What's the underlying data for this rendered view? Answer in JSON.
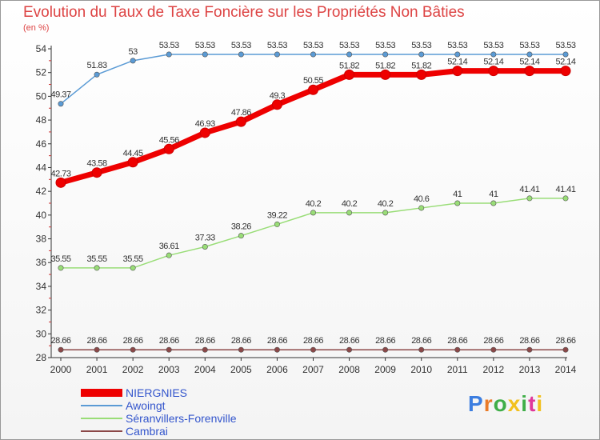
{
  "header": {
    "title": "Evolution du Taux de Taxe Foncière sur les Propriétés Non Bâties",
    "unit": "(en %)"
  },
  "logo": {
    "text": "Proxiti",
    "colors": [
      "#3c7ee0",
      "#ea7b28",
      "#3fae48",
      "#f2c01e",
      "#3fae48",
      "#e0389a",
      "#f2c01e"
    ]
  },
  "chart_data": {
    "type": "line",
    "title": "Evolution du Taux de Taxe Foncière sur les Propriétés Non Bâties",
    "ylabel": "(en %)",
    "x": [
      "2000",
      "2001",
      "2002",
      "2003",
      "2004",
      "2005",
      "2006",
      "2007",
      "2008",
      "2009",
      "2010",
      "2011",
      "2012",
      "2013",
      "2014"
    ],
    "ylim": [
      28,
      54
    ],
    "yticks": [
      28,
      30,
      32,
      34,
      36,
      38,
      40,
      42,
      44,
      46,
      48,
      50,
      52,
      54
    ],
    "grid": false,
    "legend_position": "bottom-left",
    "series": [
      {
        "name": "NIERGNIES",
        "color": "#ee0000",
        "emphasis": true,
        "values": [
          42.73,
          43.58,
          44.45,
          45.56,
          46.93,
          47.86,
          49.3,
          50.55,
          51.82,
          51.82,
          51.82,
          52.14,
          52.14,
          52.14,
          52.14
        ],
        "labels": [
          "42.73",
          "43.58",
          "44.45",
          "45.56",
          "46.93",
          "47.86",
          "49.3",
          "50.55",
          "51.82",
          "51.82",
          "51.82",
          "52.14",
          "52.14",
          "52.14",
          "52.14"
        ]
      },
      {
        "name": "Awoingt",
        "color": "#5b9bd5",
        "emphasis": false,
        "values": [
          49.37,
          51.83,
          53,
          53.53,
          53.53,
          53.53,
          53.53,
          53.53,
          53.53,
          53.53,
          53.53,
          53.53,
          53.53,
          53.53,
          53.53
        ],
        "labels": [
          "49.37",
          "51.83",
          "53",
          "53.53",
          "53.53",
          "53.53",
          "53.53",
          "53.53",
          "53.53",
          "53.53",
          "53.53",
          "53.53",
          "53.53",
          "53.53",
          "53.53"
        ]
      },
      {
        "name": "Séranvillers-Forenville",
        "color": "#99dd77",
        "emphasis": false,
        "values": [
          35.55,
          35.55,
          35.55,
          36.61,
          37.33,
          38.26,
          39.22,
          40.2,
          40.2,
          40.2,
          40.6,
          41,
          41,
          41.41,
          41.41
        ],
        "labels": [
          "35.55",
          "35.55",
          "35.55",
          "36.61",
          "37.33",
          "38.26",
          "39.22",
          "40.2",
          "40.2",
          "40.2",
          "40.6",
          "41",
          "41",
          "41.41",
          "41.41"
        ]
      },
      {
        "name": "Cambrai",
        "color": "#8b4848",
        "emphasis": false,
        "values": [
          28.66,
          28.66,
          28.66,
          28.66,
          28.66,
          28.66,
          28.66,
          28.66,
          28.66,
          28.66,
          28.66,
          28.66,
          28.66,
          28.66,
          28.66
        ],
        "labels": [
          "28.66",
          "28.66",
          "28.66",
          "28.66",
          "28.66",
          "28.66",
          "28.66",
          "28.66",
          "28.66",
          "28.66",
          "28.66",
          "28.66",
          "28.66",
          "28.66",
          "28.66"
        ]
      }
    ]
  }
}
